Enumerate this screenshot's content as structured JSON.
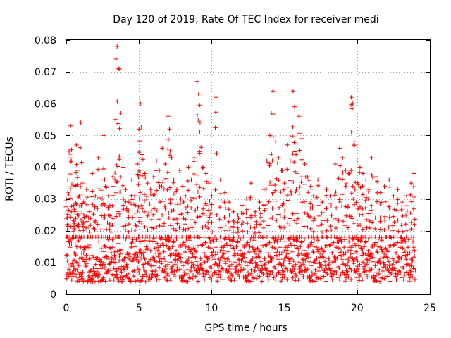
{
  "chart_data": {
    "type": "scatter",
    "title": "Day 120 of 2019, Rate Of TEC Index for receiver medi",
    "xlabel": "GPS time / hours",
    "ylabel": "ROTI / TECUs",
    "xlim": [
      0,
      25
    ],
    "ylim": [
      0,
      0.08
    ],
    "xticks": [
      0,
      5,
      10,
      15,
      20,
      25
    ],
    "xtick_labels": [
      "0",
      "5",
      "10",
      "15",
      "20",
      "25"
    ],
    "yticks": [
      0,
      0.01,
      0.02,
      0.03,
      0.04,
      0.05,
      0.06,
      0.07,
      0.08
    ],
    "ytick_labels": [
      "0",
      "0.01",
      "0.02",
      "0.03",
      "0.04",
      "0.05",
      "0.06",
      "0.07",
      "0.08"
    ],
    "grid": true,
    "marker": "plus",
    "color": "#ff0000",
    "series": [
      {
        "x": [
          0.0,
          0.1,
          0.2,
          0.3,
          0.35,
          0.5,
          0.6,
          0.7,
          0.8,
          0.9,
          1.0,
          1.1,
          1.2,
          1.4,
          1.6,
          1.8,
          2.0,
          2.2,
          2.4,
          2.6,
          2.7,
          2.9,
          3.0,
          3.2,
          3.4,
          3.5,
          3.6,
          3.7,
          3.9,
          4.1,
          4.3,
          4.5,
          4.7,
          4.9,
          5.0,
          5.1,
          5.2,
          5.4,
          5.6,
          5.8,
          6.0,
          6.2,
          6.4,
          6.6,
          6.8,
          7.0,
          7.1,
          7.2,
          7.4,
          7.6,
          7.8,
          8.0,
          8.2,
          8.4,
          8.6,
          8.8,
          9.0,
          9.1,
          9.2,
          9.4,
          9.6,
          9.8,
          10.0,
          10.3,
          10.6,
          10.9,
          11.2,
          11.5,
          11.8,
          12.1,
          12.4,
          12.7,
          13.0,
          13.3,
          13.6,
          13.8,
          14.0,
          14.1,
          14.2,
          14.4,
          14.6,
          14.8,
          15.0,
          15.2,
          15.4,
          15.6,
          15.7,
          15.8,
          16.0,
          16.2,
          16.4,
          16.6,
          16.8,
          17.0,
          17.3,
          17.6,
          17.9,
          18.2,
          18.5,
          18.8,
          19.0,
          19.2,
          19.4,
          19.6,
          19.7,
          19.8,
          20.0,
          20.2,
          20.4,
          20.6,
          20.8,
          21.0,
          21.3,
          21.6,
          21.9,
          22.2,
          22.5,
          22.8,
          23.1,
          23.4,
          23.7,
          23.9
        ],
        "y": [
          0.03,
          0.036,
          0.045,
          0.053,
          0.042,
          0.028,
          0.034,
          0.047,
          0.039,
          0.031,
          0.054,
          0.035,
          0.029,
          0.033,
          0.026,
          0.038,
          0.031,
          0.043,
          0.036,
          0.05,
          0.034,
          0.031,
          0.028,
          0.037,
          0.055,
          0.078,
          0.071,
          0.057,
          0.04,
          0.033,
          0.029,
          0.036,
          0.031,
          0.041,
          0.052,
          0.06,
          0.044,
          0.038,
          0.035,
          0.033,
          0.037,
          0.042,
          0.039,
          0.046,
          0.041,
          0.056,
          0.052,
          0.043,
          0.036,
          0.033,
          0.039,
          0.034,
          0.031,
          0.04,
          0.036,
          0.043,
          0.067,
          0.063,
          0.054,
          0.04,
          0.038,
          0.035,
          0.031,
          0.062,
          0.036,
          0.032,
          0.029,
          0.026,
          0.025,
          0.028,
          0.03,
          0.035,
          0.026,
          0.029,
          0.033,
          0.042,
          0.05,
          0.057,
          0.064,
          0.048,
          0.043,
          0.039,
          0.035,
          0.047,
          0.042,
          0.064,
          0.059,
          0.044,
          0.056,
          0.049,
          0.041,
          0.037,
          0.034,
          0.031,
          0.036,
          0.029,
          0.033,
          0.031,
          0.041,
          0.046,
          0.043,
          0.039,
          0.038,
          0.062,
          0.06,
          0.048,
          0.042,
          0.04,
          0.038,
          0.036,
          0.033,
          0.043,
          0.037,
          0.032,
          0.034,
          0.036,
          0.031,
          0.033,
          0.029,
          0.031,
          0.035,
          0.038
        ],
        "band_low": 0.004,
        "band_high": 0.018,
        "sample_interval_hours": 0.02
      }
    ]
  }
}
